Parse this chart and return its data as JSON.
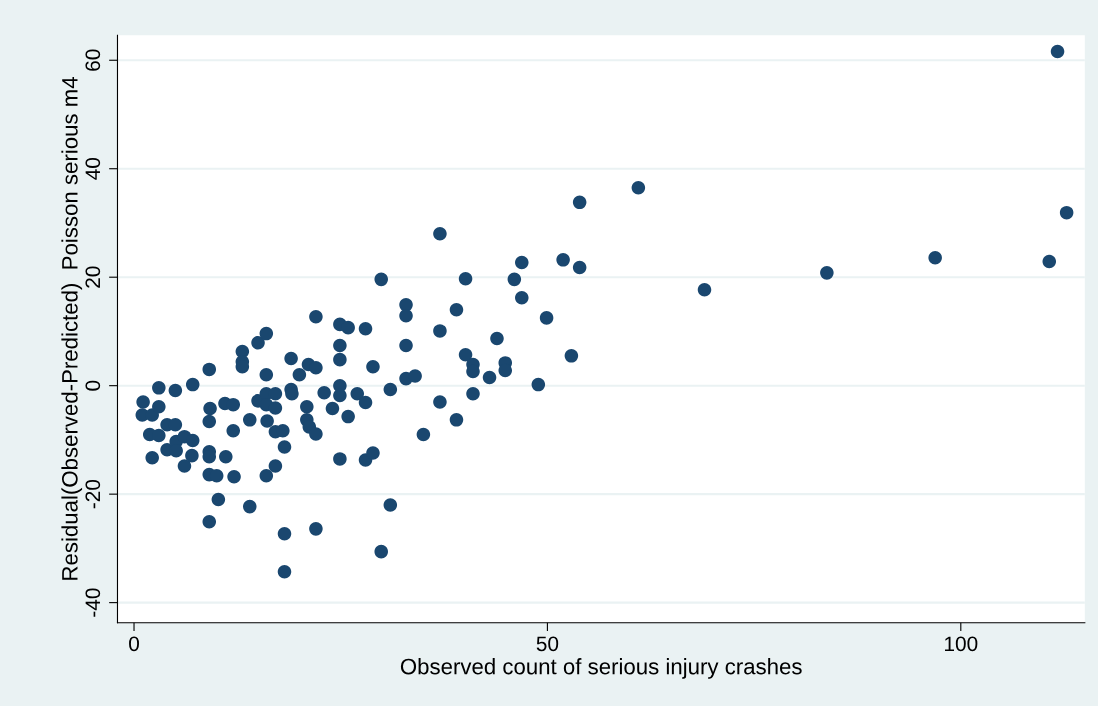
{
  "chart_data": {
    "type": "scatter",
    "xlabel": "Observed count of serious injury crashes",
    "ylabel": "Residual(Observed-Predicted)  Poisson serious m4",
    "xlim": [
      -2,
      115
    ],
    "ylim": [
      -43.7,
      64.6
    ],
    "xticks": [
      0,
      50,
      100
    ],
    "yticks": [
      -40,
      -20,
      0,
      20,
      40,
      60
    ],
    "grid": "y",
    "marker": "circle",
    "series": [
      {
        "color": "#1a476f",
        "x": [
          1.1,
          1.0,
          1.9,
          2.2,
          2.2,
          3.0,
          3.0,
          3.0,
          4.0,
          4.0,
          5.0,
          5.0,
          5.1,
          5.1,
          6.1,
          6.1,
          7.1,
          7.1,
          7.0,
          9.1,
          9.2,
          9.1,
          9.1,
          9.1,
          9.1,
          9.1,
          10.0,
          10.2,
          11.0,
          11.1,
          12.0,
          12.0,
          12.1,
          13.1,
          13.1,
          13.1,
          14.0,
          14.0,
          15.0,
          15.0,
          16.0,
          16.0,
          16.0,
          16.0,
          16.1,
          16.0,
          17.1,
          17.1,
          17.1,
          17.1,
          18.0,
          18.2,
          18.2,
          18.2,
          19.0,
          19.0,
          19.1,
          20.0,
          21.1,
          20.9,
          20.9,
          21.2,
          22.0,
          22.0,
          22.0,
          22.0,
          23.0,
          24.0,
          24.9,
          24.9,
          24.9,
          24.9,
          24.9,
          24.9,
          25.9,
          25.9,
          27.0,
          28.0,
          28.0,
          28.0,
          28.9,
          28.9,
          29.9,
          29.9,
          31.0,
          31.0,
          32.9,
          32.9,
          32.9,
          32.9,
          34.0,
          35.0,
          37.0,
          37.0,
          37.0,
          39.0,
          39.0,
          40.1,
          40.1,
          41.0,
          41.0,
          41.0,
          43.0,
          43.9,
          44.9,
          44.9,
          46.0,
          46.9,
          46.9,
          48.9,
          49.9,
          51.9,
          52.9,
          53.9,
          53.9,
          61.0,
          69.0,
          83.8,
          96.9,
          110.7,
          111.7,
          112.8
        ],
        "values": [
          -3.0,
          -5.4,
          -9.0,
          -5.4,
          -13.3,
          -0.4,
          -3.9,
          -9.2,
          -7.2,
          -11.8,
          -0.9,
          -7.2,
          -10.3,
          -12.0,
          -9.4,
          -14.8,
          0.2,
          -10.1,
          -12.9,
          3.0,
          -4.2,
          -6.6,
          -12.2,
          -13.1,
          -16.4,
          -25.1,
          -16.6,
          -21.0,
          -3.3,
          -13.1,
          -3.5,
          -8.3,
          -16.8,
          6.3,
          4.4,
          3.5,
          -6.3,
          -22.3,
          7.9,
          -2.8,
          9.6,
          2.0,
          -1.5,
          -3.5,
          -6.5,
          -16.6,
          -1.5,
          -4.1,
          -8.5,
          -14.8,
          -8.3,
          -11.3,
          -27.3,
          -34.3,
          5.0,
          -0.7,
          -1.5,
          2.0,
          3.9,
          -3.9,
          -6.3,
          -7.6,
          12.7,
          3.3,
          -8.9,
          -26.4,
          -1.3,
          -4.2,
          11.3,
          7.4,
          4.8,
          0.0,
          -1.8,
          -13.5,
          10.7,
          -5.7,
          -1.5,
          10.5,
          -3.1,
          -13.7,
          -12.4,
          3.5,
          19.6,
          -30.6,
          -0.7,
          -22.0,
          14.9,
          12.9,
          7.4,
          1.3,
          1.8,
          -9.0,
          28.0,
          10.1,
          -3.0,
          14.0,
          -6.3,
          19.7,
          5.7,
          3.9,
          2.6,
          -1.5,
          1.5,
          8.7,
          4.2,
          2.8,
          19.6,
          16.2,
          22.7,
          0.2,
          12.5,
          23.2,
          5.5,
          33.8,
          21.8,
          36.5,
          17.7,
          20.8,
          23.6,
          22.9,
          61.6,
          31.9
        ]
      }
    ]
  }
}
